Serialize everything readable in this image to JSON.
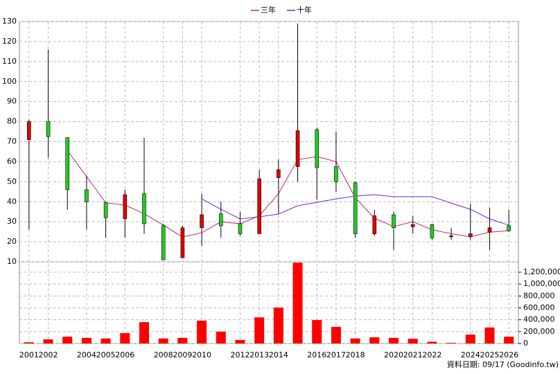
{
  "chart_data": {
    "type": "candlestick",
    "categories": [
      "2001",
      "2002",
      null,
      "2004",
      "2005",
      "2006",
      null,
      "2008",
      "2009",
      "2010",
      null,
      "2012",
      "2013",
      "2014",
      null,
      "2016",
      "2017",
      "2018",
      null,
      "2020",
      "2021",
      "2022",
      null,
      "2024",
      "2025",
      "2026"
    ],
    "open": [
      71,
      80,
      72,
      46,
      39.5,
      31.5,
      44,
      28,
      12,
      27,
      34,
      29,
      24,
      52,
      57.5,
      76,
      57.5,
      49.5,
      24,
      33.5,
      27.5,
      28.6,
      22.5,
      22.5,
      24.8,
      28
    ],
    "high": [
      81,
      116,
      72,
      53,
      40,
      46,
      72,
      29,
      28,
      44,
      40,
      35,
      56,
      61,
      129,
      77,
      75,
      50,
      36,
      35,
      33,
      29,
      27,
      39,
      37,
      36
    ],
    "low": [
      26,
      62,
      36,
      26,
      22,
      22,
      24,
      11,
      12,
      18,
      22,
      23,
      24,
      34,
      50,
      41,
      45,
      22,
      23,
      16,
      24,
      21,
      21,
      21,
      16,
      25
    ],
    "close": [
      80,
      72.5,
      46,
      40,
      32,
      43.5,
      29,
      11,
      27,
      33.5,
      28,
      24,
      51.5,
      56,
      75.5,
      57,
      50,
      24,
      33,
      27,
      28.6,
      22,
      23,
      24,
      27,
      25.5
    ],
    "up_color": "#e00000",
    "down_color": "#22cc22",
    "ylim": [
      10,
      130
    ],
    "yticks": [
      10,
      20,
      30,
      40,
      50,
      60,
      70,
      80,
      90,
      100,
      110,
      120,
      130
    ],
    "grid": true,
    "lines": [
      {
        "name": "三年",
        "color": "#cc2266",
        "values": [
          null,
          null,
          65.6,
          52.5,
          39.5,
          38.3,
          34,
          28.3,
          22.4,
          24.5,
          30,
          29,
          33,
          44,
          61,
          62.5,
          60,
          42,
          31.7,
          27.6,
          30,
          26,
          24,
          22.5,
          24.8,
          25.5
        ]
      },
      {
        "name": "十年",
        "color": "#7722cc",
        "values": [
          null,
          null,
          null,
          null,
          null,
          null,
          null,
          null,
          null,
          41.4,
          36.2,
          31.4,
          32.5,
          33.8,
          38,
          39.7,
          41.4,
          42.8,
          43.5,
          42.5,
          42.5,
          42.5,
          39.3,
          36.2,
          31.4,
          28.3
        ]
      }
    ],
    "volume": {
      "color": "#ff0000",
      "values": [
        20000,
        70000,
        115000,
        95000,
        85000,
        175000,
        360000,
        85000,
        95000,
        385000,
        200000,
        60000,
        440000,
        605000,
        1360000,
        395000,
        280000,
        85000,
        105000,
        95000,
        80000,
        30000,
        10000,
        150000,
        270000,
        115000
      ],
      "ylim": [
        0,
        1375000
      ],
      "yticks": [
        0,
        {
          "value": 200000,
          "label": "200,000"
        },
        {
          "value": 400000,
          "label": "400,000"
        },
        {
          "value": 600000,
          "label": "600,000"
        },
        {
          "value": 800000,
          "label": "800,000"
        },
        {
          "value": 1000000,
          "label": "1,000,000"
        },
        {
          "value": 1200000,
          "label": "1,200,000"
        }
      ]
    },
    "note": "資料日期: 09/17  (Goodinfo.tw)"
  }
}
